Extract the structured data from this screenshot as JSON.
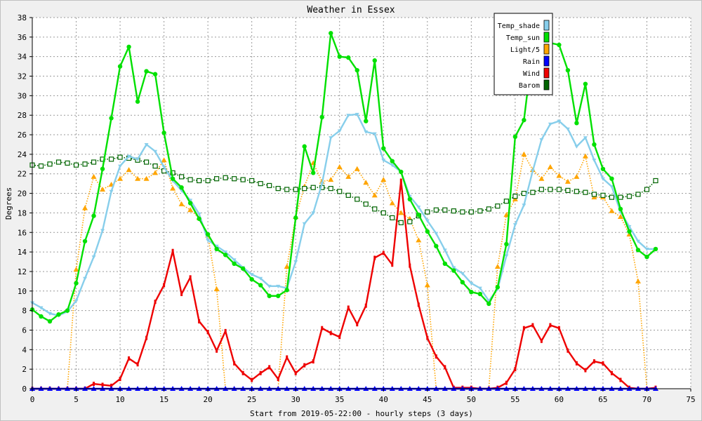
{
  "chart_data": {
    "type": "line",
    "title": "Weather in Essex",
    "xlabel": "Start from 2019-05-22:00 - hourly steps (3 days)",
    "ylabel": "Degrees",
    "xlim": [
      0,
      75
    ],
    "ylim": [
      0,
      38
    ],
    "xticks": [
      0,
      5,
      10,
      15,
      20,
      25,
      30,
      35,
      40,
      45,
      50,
      55,
      60,
      65,
      70,
      75
    ],
    "yticks": [
      0,
      2,
      4,
      6,
      8,
      10,
      12,
      14,
      16,
      18,
      20,
      22,
      24,
      26,
      28,
      30,
      32,
      34,
      36,
      38
    ],
    "grid": true,
    "legend_position": "top-right",
    "x": [
      0,
      1,
      2,
      3,
      4,
      5,
      6,
      7,
      8,
      9,
      10,
      11,
      12,
      13,
      14,
      15,
      16,
      17,
      18,
      19,
      20,
      21,
      22,
      23,
      24,
      25,
      26,
      27,
      28,
      29,
      30,
      31,
      32,
      33,
      34,
      35,
      36,
      37,
      38,
      39,
      40,
      41,
      42,
      43,
      44,
      45,
      46,
      47,
      48,
      49,
      50,
      51,
      52,
      53,
      54,
      55,
      56,
      57,
      58,
      59,
      60,
      61,
      62,
      63,
      64,
      65,
      66,
      67,
      68,
      69,
      70,
      71
    ],
    "series": [
      {
        "name": "Temp_shade",
        "color": "#87ceeb",
        "style": "solid",
        "marker": "triangle-down",
        "values": [
          8.8,
          8.3,
          7.7,
          7.5,
          7.9,
          9.0,
          11.3,
          13.5,
          16.2,
          20.2,
          22.8,
          23.8,
          23.5,
          25.0,
          24.3,
          22.7,
          21.3,
          20.3,
          19.3,
          17.9,
          15.2,
          14.6,
          14.0,
          13.2,
          12.4,
          11.7,
          11.3,
          10.5,
          10.5,
          10.3,
          13.0,
          16.9,
          18.0,
          21.0,
          25.7,
          26.4,
          28.0,
          28.1,
          26.3,
          26.1,
          23.4,
          22.9,
          22.2,
          19.7,
          18.6,
          17.2,
          15.9,
          14.2,
          12.4,
          11.8,
          10.8,
          10.3,
          9.0,
          10.2,
          13.6,
          16.8,
          18.8,
          22.3,
          25.5,
          27.1,
          27.4,
          26.6,
          24.8,
          25.7,
          23.4,
          21.5,
          20.7,
          18.1,
          16.6,
          15.1,
          14.3,
          14.3
        ]
      },
      {
        "name": "Temp_sun",
        "color": "#00e000",
        "style": "solid",
        "marker": "circle",
        "values": [
          8.1,
          7.4,
          6.9,
          7.6,
          8.0,
          10.8,
          15.1,
          17.7,
          22.5,
          27.7,
          33.0,
          35.0,
          29.4,
          32.5,
          32.2,
          26.2,
          21.5,
          20.6,
          19.0,
          17.4,
          15.8,
          14.3,
          13.7,
          12.8,
          12.3,
          11.2,
          10.6,
          9.5,
          9.5,
          10.1,
          17.5,
          24.8,
          22.1,
          27.8,
          36.4,
          34.0,
          33.9,
          32.6,
          27.4,
          33.6,
          24.6,
          23.3,
          22.2,
          19.4,
          17.8,
          16.1,
          14.6,
          12.8,
          12.1,
          10.9,
          9.9,
          9.7,
          8.7,
          10.4,
          14.8,
          25.8,
          27.5,
          34.8,
          35.7,
          35.4,
          35.2,
          32.6,
          27.2,
          31.2,
          25.0,
          22.5,
          21.5,
          18.4,
          16.1,
          14.2,
          13.5,
          14.3
        ]
      },
      {
        "name": "Light/5",
        "color": "#ffa500",
        "style": "dotted",
        "marker": "triangle-up",
        "values": [
          0,
          0,
          0,
          0,
          0,
          12.2,
          18.5,
          21.7,
          20.4,
          20.9,
          21.5,
          22.4,
          21.5,
          21.5,
          22.1,
          23.4,
          20.5,
          18.9,
          18.3,
          17.5,
          15.7,
          10.2,
          0,
          0,
          0,
          0,
          0,
          0,
          0,
          12.5,
          17.6,
          20.7,
          23.1,
          21.2,
          21.4,
          22.7,
          21.7,
          22.5,
          21.1,
          19.8,
          21.4,
          19.0,
          18.0,
          17.4,
          15.2,
          10.6,
          0,
          0,
          0,
          0,
          0,
          0,
          0,
          12.5,
          17.8,
          19.4,
          24.0,
          22.4,
          21.5,
          22.7,
          21.8,
          21.2,
          21.7,
          23.8,
          19.6,
          19.6,
          18.2,
          17.6,
          15.8,
          11.0,
          0,
          0
        ]
      },
      {
        "name": "Rain",
        "color": "#0000ff",
        "style": "solid",
        "marker": "triangle-up",
        "values": [
          0,
          0,
          0,
          0,
          0,
          0,
          0,
          0,
          0,
          0,
          0,
          0,
          0,
          0,
          0,
          0,
          0,
          0,
          0,
          0,
          0,
          0,
          0,
          0,
          0,
          0,
          0,
          0,
          0,
          0,
          0,
          0,
          0,
          0,
          0,
          0,
          0,
          0,
          0,
          0,
          0,
          0,
          0,
          0,
          0,
          0,
          0,
          0,
          0,
          0,
          0,
          0,
          0,
          0,
          0,
          0,
          0,
          0,
          0,
          0,
          0,
          0,
          0,
          0,
          0,
          0,
          0,
          0,
          0,
          0,
          0,
          0
        ]
      },
      {
        "name": "Wind",
        "color": "#ee0000",
        "style": "solid",
        "marker": "bar",
        "values": [
          0,
          0,
          0,
          0,
          0,
          0,
          0,
          0.5,
          0.4,
          0.3,
          1.0,
          3.1,
          2.5,
          5.2,
          8.9,
          10.6,
          14.1,
          9.7,
          11.4,
          6.9,
          5.8,
          3.9,
          5.9,
          2.6,
          1.6,
          0.9,
          1.6,
          2.2,
          1.0,
          3.2,
          1.6,
          2.4,
          2.8,
          6.2,
          5.7,
          5.3,
          8.3,
          6.6,
          8.5,
          13.4,
          13.9,
          12.7,
          21.3,
          12.6,
          8.6,
          5.2,
          3.3,
          2.2,
          0.1,
          0.1,
          0.1,
          0,
          0,
          0.1,
          0.6,
          2.0,
          6.2,
          6.5,
          4.9,
          6.5,
          6.2,
          3.9,
          2.6,
          1.9,
          2.8,
          2.6,
          1.6,
          0.9,
          0.1,
          0,
          0,
          0.1
        ]
      },
      {
        "name": "Barom",
        "color": "#006400",
        "style": "dotted",
        "marker": "square",
        "values": [
          22.9,
          22.8,
          23.0,
          23.2,
          23.1,
          22.9,
          23.0,
          23.2,
          23.5,
          23.5,
          23.7,
          23.6,
          23.4,
          23.2,
          22.8,
          22.3,
          22.1,
          21.7,
          21.4,
          21.3,
          21.3,
          21.5,
          21.6,
          21.5,
          21.4,
          21.3,
          21.0,
          20.8,
          20.5,
          20.4,
          20.4,
          20.5,
          20.6,
          20.6,
          20.5,
          20.2,
          19.8,
          19.4,
          18.9,
          18.4,
          18.0,
          17.5,
          17.0,
          17.1,
          17.7,
          18.1,
          18.3,
          18.3,
          18.2,
          18.1,
          18.1,
          18.2,
          18.4,
          18.7,
          19.2,
          19.7,
          20.0,
          20.1,
          20.4,
          20.4,
          20.4,
          20.3,
          20.2,
          20.1,
          19.9,
          19.8,
          19.6,
          19.6,
          19.7,
          19.9,
          20.4,
          21.3
        ]
      }
    ]
  }
}
